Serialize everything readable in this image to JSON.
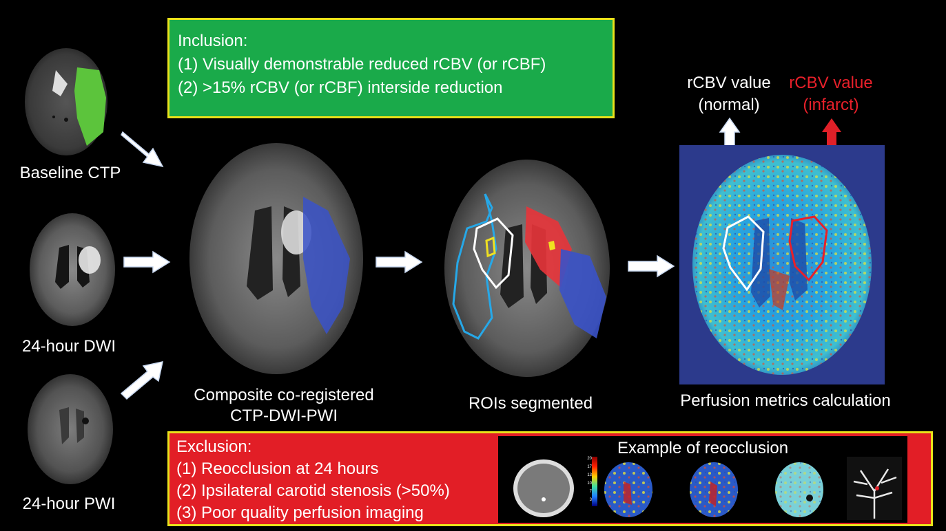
{
  "inclusion": {
    "title": "Inclusion:",
    "items": [
      "(1) Visually demonstrable reduced rCBV (or rCBF)",
      "(2) >15% rCBV (or rCBF) interside reduction"
    ]
  },
  "exclusion": {
    "title": "Exclusion:",
    "items": [
      "(1) Reocclusion at 24 hours",
      "(2) Ipsilateral carotid stenosis (>50%)",
      "(3) Poor quality perfusion imaging"
    ],
    "example_title": "Example of reocclusion"
  },
  "inputs": {
    "baseline_ctp": "Baseline CTP",
    "dwi": "24-hour DWI",
    "pwi": "24-hour PWI"
  },
  "steps": {
    "composite_line1": "Composite co-registered",
    "composite_line2": "CTP-DWI-PWI",
    "rois": "ROIs segmented",
    "perfusion": "Perfusion metrics calculation"
  },
  "rcbv": {
    "normal_line1": "rCBV value",
    "normal_line2": "(normal)",
    "infarct_line1": "rCBV value",
    "infarct_line2": "(infarct)"
  },
  "colorbar_ticks": [
    "20",
    "17",
    "13",
    "10",
    "7",
    "3",
    "0"
  ],
  "colors": {
    "inclusion_bg": "#1aaa4a",
    "exclusion_bg": "#e21e26",
    "border": "#e8e21a",
    "infarct_text": "#e8202a",
    "arrow": "#ffffff"
  }
}
